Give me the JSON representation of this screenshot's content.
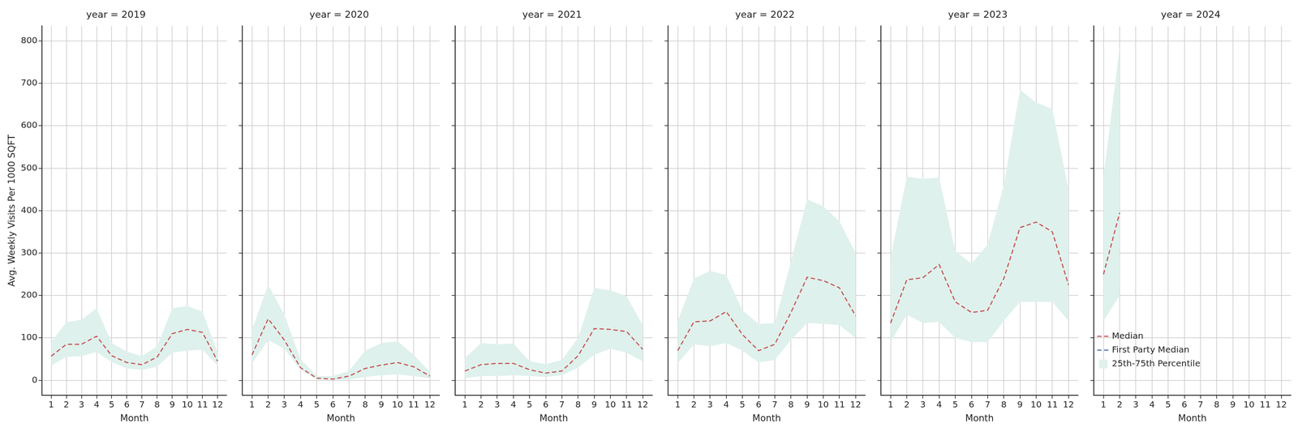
{
  "chart_data": [
    {
      "type": "line",
      "title": "year = 2019",
      "xlabel": "Month",
      "ylabel": "Avg. Weekly Visits Per 1000 SQFT",
      "x": [
        1,
        2,
        3,
        4,
        5,
        6,
        7,
        8,
        9,
        10,
        11,
        12
      ],
      "xlim": [
        0.4,
        12.6
      ],
      "xticks": [
        1,
        2,
        3,
        4,
        5,
        6,
        7,
        8,
        9,
        10,
        11,
        12
      ],
      "ylim": [
        -35,
        835
      ],
      "yticks": [
        0,
        100,
        200,
        300,
        400,
        500,
        600,
        700,
        800
      ],
      "grid": true,
      "series": [
        {
          "name": "Median",
          "type": "line",
          "color": "#c44e52",
          "line_style": "dashed",
          "values": [
            57,
            85,
            85,
            104,
            58,
            42,
            37,
            55,
            110,
            120,
            113,
            45
          ]
        },
        {
          "name": "First Party Median",
          "type": "line",
          "color": "#4c72b0",
          "line_style": "dashed",
          "values": [
            null,
            null,
            null,
            null,
            null,
            null,
            null,
            null,
            null,
            null,
            null,
            null
          ]
        },
        {
          "name": "25th-75th Percentile",
          "type": "band",
          "color": "#dff1ec",
          "lower": [
            35,
            55,
            57,
            67,
            43,
            28,
            25,
            32,
            65,
            70,
            72,
            35
          ],
          "upper": [
            90,
            137,
            143,
            170,
            88,
            68,
            57,
            80,
            170,
            175,
            162,
            65
          ]
        }
      ]
    },
    {
      "type": "line",
      "title": "year = 2020",
      "xlabel": "Month",
      "tick_labels": "x",
      "x": [
        1,
        2,
        3,
        4,
        5,
        6,
        7,
        8,
        9,
        10,
        11,
        12
      ],
      "xlim": [
        0.4,
        12.6
      ],
      "xticks": [
        1,
        2,
        3,
        4,
        5,
        6,
        7,
        8,
        9,
        10,
        11,
        12
      ],
      "ylim": [
        -35,
        835
      ],
      "yticks": [
        0,
        100,
        200,
        300,
        400,
        500,
        600,
        700,
        800
      ],
      "grid": true,
      "series": [
        {
          "name": "Median",
          "type": "line",
          "color": "#c44e52",
          "line_style": "dashed",
          "values": [
            60,
            145,
            95,
            30,
            5,
            3,
            10,
            28,
            36,
            42,
            32,
            10
          ]
        },
        {
          "name": "First Party Median",
          "type": "line",
          "color": "#4c72b0",
          "line_style": "dashed",
          "values": [
            null,
            null,
            null,
            null,
            null,
            null,
            null,
            null,
            null,
            null,
            null,
            null
          ]
        },
        {
          "name": "25th-75th Percentile",
          "type": "band",
          "color": "#dff1ec",
          "lower": [
            40,
            95,
            75,
            25,
            3,
            1,
            2,
            8,
            12,
            14,
            10,
            5
          ],
          "upper": [
            120,
            225,
            155,
            50,
            10,
            10,
            22,
            70,
            88,
            92,
            60,
            20
          ]
        }
      ]
    },
    {
      "type": "line",
      "title": "year = 2021",
      "xlabel": "Month",
      "tick_labels": "x",
      "x": [
        1,
        2,
        3,
        4,
        5,
        6,
        7,
        8,
        9,
        10,
        11,
        12
      ],
      "xlim": [
        0.4,
        12.6
      ],
      "xticks": [
        1,
        2,
        3,
        4,
        5,
        6,
        7,
        8,
        9,
        10,
        11,
        12
      ],
      "ylim": [
        -35,
        835
      ],
      "yticks": [
        0,
        100,
        200,
        300,
        400,
        500,
        600,
        700,
        800
      ],
      "grid": true,
      "series": [
        {
          "name": "Median",
          "type": "line",
          "color": "#c44e52",
          "line_style": "dashed",
          "values": [
            22,
            37,
            40,
            40,
            25,
            17,
            22,
            58,
            122,
            120,
            115,
            73
          ]
        },
        {
          "name": "First Party Median",
          "type": "line",
          "color": "#4c72b0",
          "line_style": "dashed",
          "values": [
            null,
            null,
            null,
            null,
            null,
            null,
            null,
            null,
            null,
            null,
            null,
            null
          ]
        },
        {
          "name": "25th-75th Percentile",
          "type": "band",
          "color": "#dff1ec",
          "lower": [
            5,
            10,
            10,
            12,
            10,
            8,
            12,
            30,
            60,
            75,
            65,
            45
          ],
          "upper": [
            52,
            88,
            85,
            87,
            45,
            38,
            48,
            100,
            218,
            212,
            198,
            130
          ]
        }
      ]
    },
    {
      "type": "line",
      "title": "year = 2022",
      "xlabel": "Month",
      "tick_labels": "x",
      "x": [
        1,
        2,
        3,
        4,
        5,
        6,
        7,
        8,
        9,
        10,
        11,
        12
      ],
      "xlim": [
        0.4,
        12.6
      ],
      "xticks": [
        1,
        2,
        3,
        4,
        5,
        6,
        7,
        8,
        9,
        10,
        11,
        12
      ],
      "ylim": [
        -35,
        835
      ],
      "yticks": [
        0,
        100,
        200,
        300,
        400,
        500,
        600,
        700,
        800
      ],
      "grid": true,
      "series": [
        {
          "name": "Median",
          "type": "line",
          "color": "#c44e52",
          "line_style": "dashed",
          "values": [
            70,
            138,
            140,
            162,
            108,
            70,
            85,
            160,
            243,
            235,
            218,
            152
          ]
        },
        {
          "name": "First Party Median",
          "type": "line",
          "color": "#4c72b0",
          "line_style": "dashed",
          "values": [
            null,
            null,
            null,
            null,
            null,
            null,
            null,
            null,
            null,
            null,
            null,
            null
          ]
        },
        {
          "name": "25th-75th Percentile",
          "type": "band",
          "color": "#dff1ec",
          "lower": [
            40,
            85,
            80,
            88,
            70,
            42,
            48,
            95,
            135,
            133,
            130,
            100
          ],
          "upper": [
            140,
            240,
            258,
            248,
            165,
            133,
            135,
            280,
            427,
            410,
            375,
            300
          ]
        }
      ]
    },
    {
      "type": "line",
      "title": "year = 2023",
      "xlabel": "Month",
      "tick_labels": "x",
      "x": [
        1,
        2,
        3,
        4,
        5,
        6,
        7,
        8,
        9,
        10,
        11,
        12
      ],
      "xlim": [
        0.4,
        12.6
      ],
      "xticks": [
        1,
        2,
        3,
        4,
        5,
        6,
        7,
        8,
        9,
        10,
        11,
        12
      ],
      "ylim": [
        -35,
        835
      ],
      "yticks": [
        0,
        100,
        200,
        300,
        400,
        500,
        600,
        700,
        800
      ],
      "grid": true,
      "series": [
        {
          "name": "Median",
          "type": "line",
          "color": "#c44e52",
          "line_style": "dashed",
          "values": [
            135,
            237,
            242,
            273,
            185,
            160,
            165,
            240,
            360,
            373,
            350,
            225
          ]
        },
        {
          "name": "First Party Median",
          "type": "line",
          "color": "#4c72b0",
          "line_style": "dashed",
          "values": [
            null,
            null,
            null,
            null,
            null,
            null,
            null,
            null,
            null,
            null,
            null,
            null
          ]
        },
        {
          "name": "25th-75th Percentile",
          "type": "band",
          "color": "#dff1ec",
          "lower": [
            90,
            155,
            135,
            138,
            100,
            90,
            90,
            140,
            185,
            185,
            185,
            140
          ],
          "upper": [
            290,
            480,
            475,
            478,
            305,
            275,
            320,
            460,
            685,
            655,
            640,
            450
          ]
        }
      ]
    },
    {
      "type": "line",
      "title": "year = 2024",
      "xlabel": "Month",
      "tick_labels": "x",
      "legend": "upper right",
      "x": [
        1,
        2,
        3,
        4,
        5,
        6,
        7,
        8,
        9,
        10,
        11,
        12
      ],
      "xlim": [
        0.4,
        12.6
      ],
      "xticks": [
        1,
        2,
        3,
        4,
        5,
        6,
        7,
        8,
        9,
        10,
        11,
        12
      ],
      "ylim": [
        -35,
        835
      ],
      "yticks": [
        0,
        100,
        200,
        300,
        400,
        500,
        600,
        700,
        800
      ],
      "grid": true,
      "series": [
        {
          "name": "Median",
          "type": "line",
          "color": "#c44e52",
          "line_style": "dashed",
          "values": [
            250,
            395,
            null,
            null,
            null,
            null,
            null,
            null,
            null,
            null,
            null,
            null
          ]
        },
        {
          "name": "First Party Median",
          "type": "line",
          "color": "#4c72b0",
          "line_style": "dashed",
          "values": [
            null,
            null,
            null,
            null,
            null,
            null,
            null,
            null,
            null,
            null,
            null,
            null
          ]
        },
        {
          "name": "25th-75th Percentile",
          "type": "band",
          "color": "#dff1ec",
          "lower": [
            140,
            200,
            null,
            null,
            null,
            null,
            null,
            null,
            null,
            null,
            null,
            null
          ],
          "upper": [
            480,
            785,
            null,
            null,
            null,
            null,
            null,
            null,
            null,
            null,
            null,
            null
          ]
        }
      ]
    }
  ]
}
